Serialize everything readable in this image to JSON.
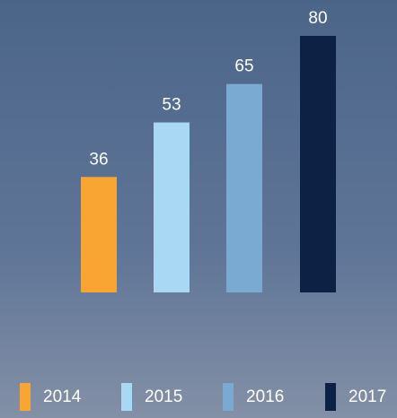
{
  "chart_data": {
    "type": "bar",
    "categories": [
      "2014",
      "2015",
      "2016",
      "2017"
    ],
    "values": [
      36,
      53,
      65,
      80
    ],
    "colors": [
      "#f9a533",
      "#a9d8f5",
      "#7aa9d2",
      "#0d2145"
    ],
    "ylim": [
      0,
      80
    ],
    "legend": "bottom"
  }
}
